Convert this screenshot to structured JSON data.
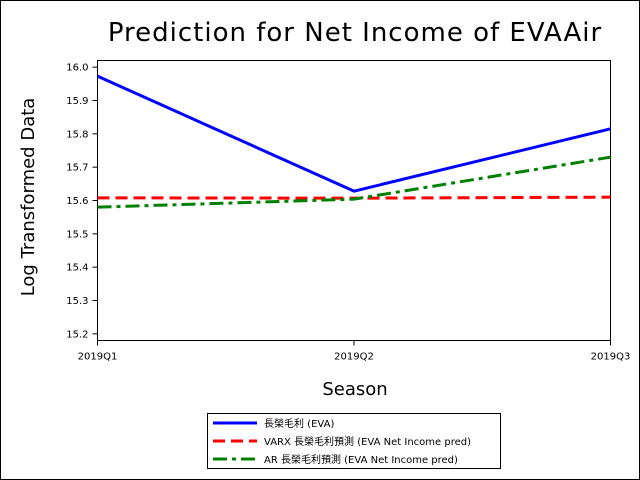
{
  "chart_data": {
    "type": "line",
    "title": "Prediction for Net Income of EVAAir",
    "xlabel": "Season",
    "ylabel": "Log Transformed Data",
    "categories": [
      "2019Q1",
      "2019Q2",
      "2019Q3"
    ],
    "ylim": [
      15.18,
      16.02
    ],
    "yticks": [
      "15.2",
      "15.3",
      "15.4",
      "15.5",
      "15.6",
      "15.7",
      "15.8",
      "15.9",
      "16.0"
    ],
    "grid": false,
    "legend_position": "bottom",
    "series": [
      {
        "name": "長榮毛利 (EVA)",
        "values": [
          15.973,
          15.628,
          15.815
        ],
        "color": "#0000ff",
        "dash": "solid"
      },
      {
        "name": "VARX 長榮毛利預測 (EVA Net Income pred)",
        "values": [
          15.608,
          15.607,
          15.61
        ],
        "color": "#ff0000",
        "dash": "dash"
      },
      {
        "name": "AR 長榮毛利預測 (EVA Net Income pred)",
        "values": [
          15.58,
          15.604,
          15.73
        ],
        "color": "#008000",
        "dash": "dashdot"
      }
    ]
  }
}
